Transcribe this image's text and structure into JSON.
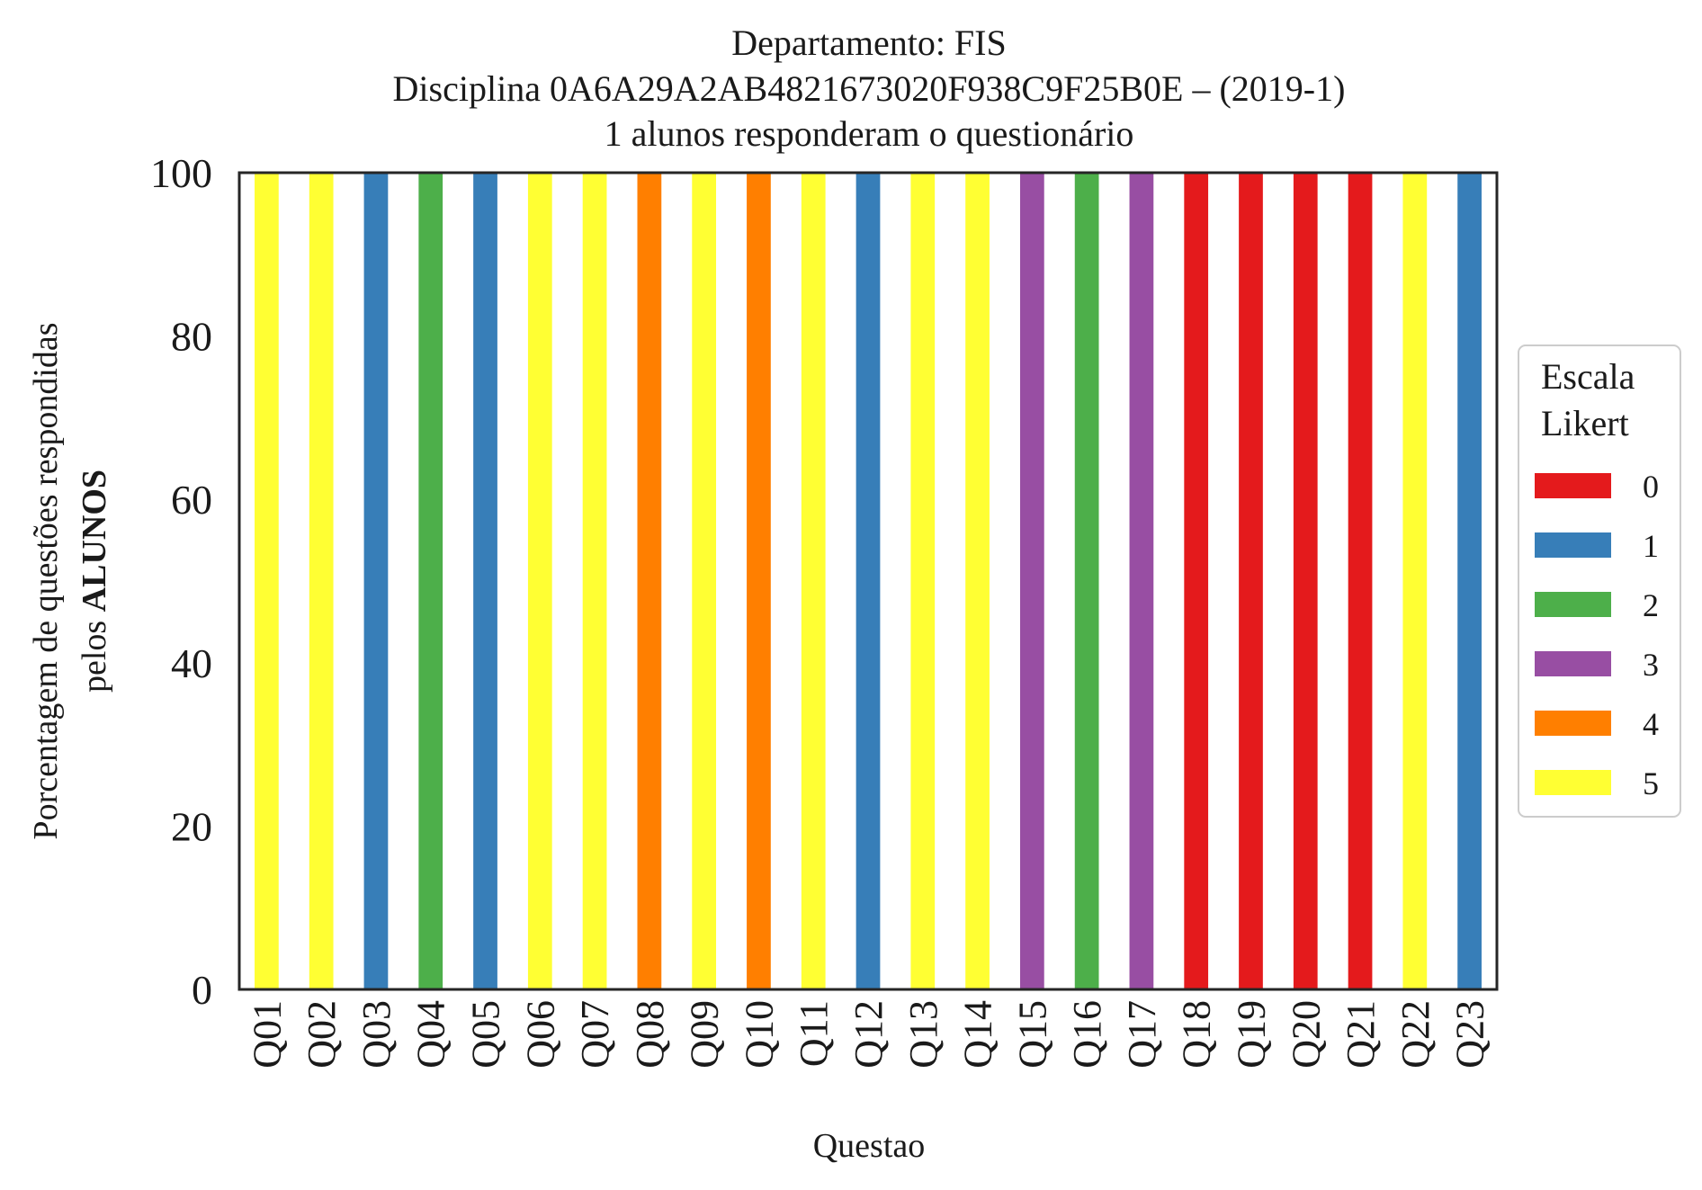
{
  "chart_data": {
    "type": "bar",
    "title_lines": [
      "Departamento: FIS",
      "Disciplina 0A6A29A2AB4821673020F938C9F25B0E – (2019-1)",
      "1 alunos responderam o questionário"
    ],
    "xlabel": "Questao",
    "ylabel_line1": "Porcentagem de questões respondidas",
    "ylabel_line2_prefix": "pelos ",
    "ylabel_line2_bold": "ALUNOS",
    "ylim": [
      0,
      100
    ],
    "yticks": [
      0,
      20,
      40,
      60,
      80,
      100
    ],
    "categories": [
      "Q01",
      "Q02",
      "Q03",
      "Q04",
      "Q05",
      "Q06",
      "Q07",
      "Q08",
      "Q09",
      "Q10",
      "Q11",
      "Q12",
      "Q13",
      "Q14",
      "Q15",
      "Q16",
      "Q17",
      "Q18",
      "Q19",
      "Q20",
      "Q21",
      "Q22",
      "Q23"
    ],
    "answers": [
      5,
      5,
      1,
      2,
      1,
      5,
      5,
      4,
      5,
      4,
      5,
      1,
      5,
      5,
      3,
      2,
      3,
      0,
      0,
      0,
      0,
      5,
      1
    ],
    "values": [
      100,
      100,
      100,
      100,
      100,
      100,
      100,
      100,
      100,
      100,
      100,
      100,
      100,
      100,
      100,
      100,
      100,
      100,
      100,
      100,
      100,
      100,
      100
    ],
    "grid": false,
    "legend": {
      "title_line1": "Escala",
      "title_line2": "Likert",
      "placement": "right, outside plot",
      "entries": [
        {
          "label": "0",
          "color": "#e41a1c"
        },
        {
          "label": "1",
          "color": "#377eb8"
        },
        {
          "label": "2",
          "color": "#4daf4a"
        },
        {
          "label": "3",
          "color": "#984ea3"
        },
        {
          "label": "4",
          "color": "#ff7f00"
        },
        {
          "label": "5",
          "color": "#ffff33"
        }
      ]
    }
  }
}
